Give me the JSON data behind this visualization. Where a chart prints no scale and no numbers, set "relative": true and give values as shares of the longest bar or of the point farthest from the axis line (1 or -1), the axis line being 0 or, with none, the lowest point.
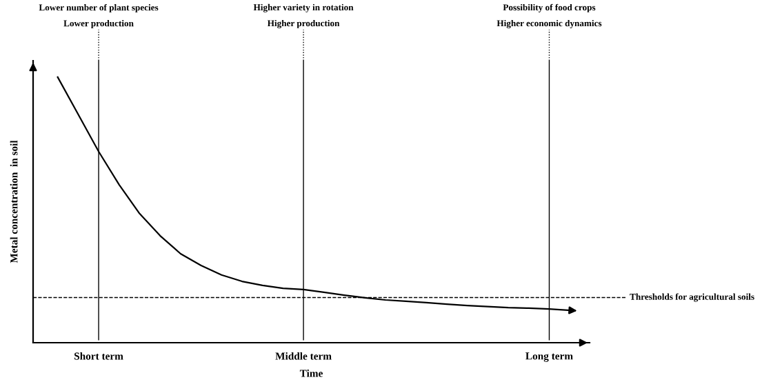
{
  "chart_data": {
    "type": "line",
    "relative": true,
    "xlabel": "Time",
    "ylabel": "Metal concentration  in soil",
    "categories": [
      null,
      null,
      "Short term",
      null,
      null,
      null,
      null,
      null,
      null,
      null,
      null,
      null,
      "Middle term",
      null,
      null,
      null,
      null,
      null,
      null,
      null,
      null,
      null,
      null,
      null,
      "Long term",
      null
    ],
    "series": [
      {
        "color": "#000000",
        "values": [
          1.0,
          0.86,
          0.72,
          0.595,
          0.486,
          0.403,
          0.335,
          0.291,
          0.255,
          0.231,
          0.216,
          0.205,
          0.2,
          0.19,
          0.179,
          0.169,
          0.161,
          0.156,
          0.151,
          0.145,
          0.14,
          0.136,
          0.132,
          0.13,
          0.127,
          0.122
        ]
      }
    ],
    "ref_lines": [
      {
        "axis": "x",
        "value": "Short term",
        "label": "Lower number of plant species\nLower production",
        "color": "#000000",
        "line_style": "solid"
      },
      {
        "axis": "x",
        "value": "Middle term",
        "label": "Higher variety in rotation\nHigher production",
        "color": "#000000",
        "line_style": "solid"
      },
      {
        "axis": "x",
        "value": "Long term",
        "label": "Possibility of food crops\nHigher economic dynamics",
        "color": "#000000",
        "line_style": "solid"
      },
      {
        "axis": "y",
        "value": 0.17,
        "label": "Thresholds for agricultural soils",
        "color": "#000000",
        "line_style": "dashed"
      }
    ],
    "grid": false,
    "legend": false,
    "marker": "none",
    "line_style": "solid"
  }
}
